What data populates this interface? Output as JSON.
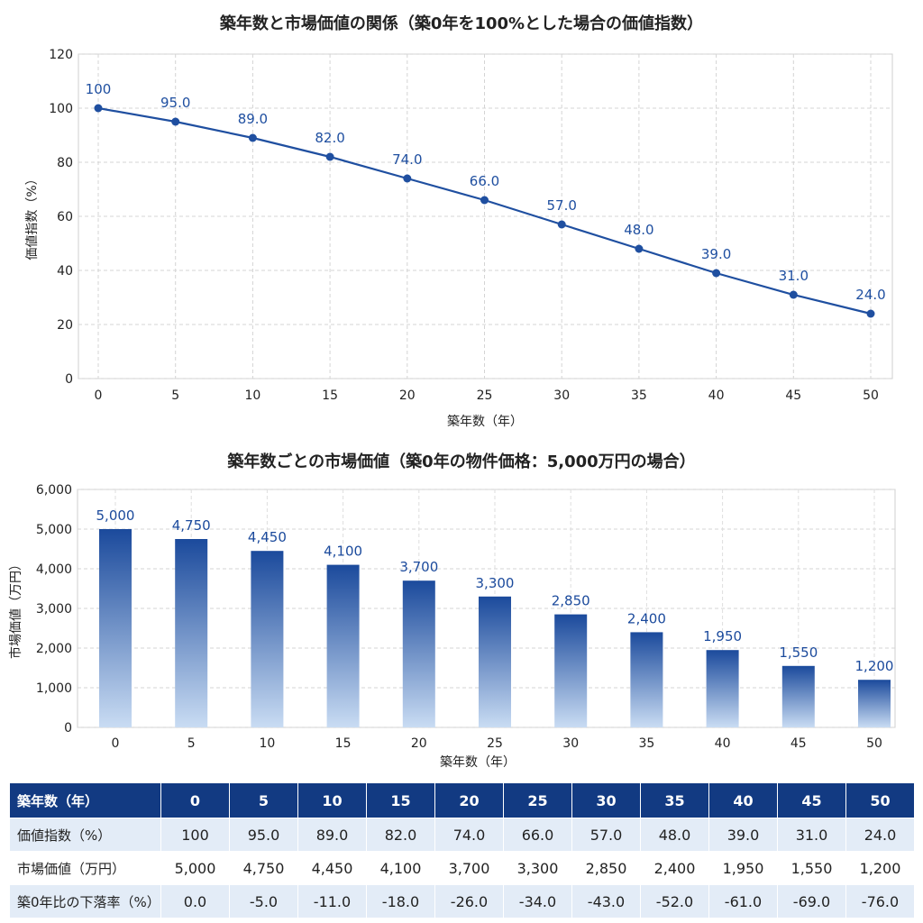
{
  "chart_data": [
    {
      "type": "line",
      "title": "築年数と市場価値の関係（築0年を100%とした場合の価値指数）",
      "xlabel": "築年数（年）",
      "ylabel": "価値指数（%）",
      "x": [
        0,
        5,
        10,
        15,
        20,
        25,
        30,
        35,
        40,
        45,
        50
      ],
      "values": [
        100,
        95.0,
        89.0,
        82.0,
        74.0,
        66.0,
        57.0,
        48.0,
        39.0,
        31.0,
        24.0
      ],
      "data_labels": [
        "100",
        "95.0",
        "89.0",
        "82.0",
        "74.0",
        "66.0",
        "57.0",
        "48.0",
        "39.0",
        "31.0",
        "24.0"
      ],
      "xticks": [
        "0",
        "5",
        "10",
        "15",
        "20",
        "25",
        "30",
        "35",
        "40",
        "45",
        "50"
      ],
      "yticks": [
        "0",
        "20",
        "40",
        "60",
        "80",
        "100",
        "120"
      ],
      "ylim": [
        0,
        120
      ],
      "grid": true,
      "color": "#1f4fa0"
    },
    {
      "type": "bar",
      "title": "築年数ごとの市場価値（築0年の物件価格：5,000万円の場合）",
      "xlabel": "築年数（年）",
      "ylabel": "市場価値（万円）",
      "categories": [
        "0",
        "5",
        "10",
        "15",
        "20",
        "25",
        "30",
        "35",
        "40",
        "45",
        "50"
      ],
      "values": [
        5000,
        4750,
        4450,
        4100,
        3700,
        3300,
        2850,
        2400,
        1950,
        1550,
        1200
      ],
      "data_labels": [
        "5,000",
        "4,750",
        "4,450",
        "4,100",
        "3,700",
        "3,300",
        "2,850",
        "2,400",
        "1,950",
        "1,550",
        "1,200"
      ],
      "yticks": [
        "0",
        "1,000",
        "2,000",
        "3,000",
        "4,000",
        "5,000",
        "6,000"
      ],
      "ylim": [
        0,
        6000
      ],
      "grid": true,
      "color": "#1b4a9c"
    },
    {
      "type": "table",
      "header": [
        "築年数（年）",
        "0",
        "5",
        "10",
        "15",
        "20",
        "25",
        "30",
        "35",
        "40",
        "45",
        "50"
      ],
      "rows": [
        [
          "価値指数（%）",
          "100",
          "95.0",
          "89.0",
          "82.0",
          "74.0",
          "66.0",
          "57.0",
          "48.0",
          "39.0",
          "31.0",
          "24.0"
        ],
        [
          "市場価値（万円）",
          "5,000",
          "4,750",
          "4,450",
          "4,100",
          "3,700",
          "3,300",
          "2,850",
          "2,400",
          "1,950",
          "1,550",
          "1,200"
        ],
        [
          "築0年比の下落率（%）",
          "0.0",
          "-5.0",
          "-11.0",
          "-18.0",
          "-26.0",
          "-34.0",
          "-43.0",
          "-52.0",
          "-61.0",
          "-69.0",
          "-76.0"
        ]
      ]
    }
  ]
}
